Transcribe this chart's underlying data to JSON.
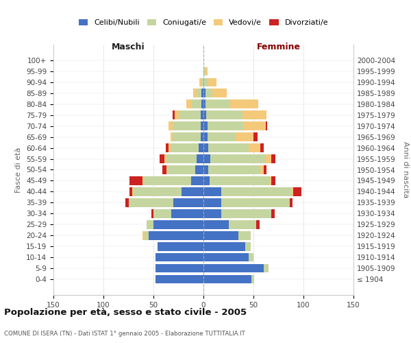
{
  "age_groups": [
    "100+",
    "95-99",
    "90-94",
    "85-89",
    "80-84",
    "75-79",
    "70-74",
    "65-69",
    "60-64",
    "55-59",
    "50-54",
    "45-49",
    "40-44",
    "35-39",
    "30-34",
    "25-29",
    "20-24",
    "15-19",
    "10-14",
    "5-9",
    "0-4"
  ],
  "birth_years": [
    "≤ 1904",
    "1905-1909",
    "1910-1914",
    "1915-1919",
    "1920-1924",
    "1925-1929",
    "1930-1934",
    "1935-1939",
    "1940-1944",
    "1945-1949",
    "1950-1954",
    "1955-1959",
    "1960-1964",
    "1965-1969",
    "1970-1974",
    "1975-1979",
    "1980-1984",
    "1985-1989",
    "1990-1994",
    "1995-1999",
    "2000-2004"
  ],
  "colors": {
    "celibe": "#4472c4",
    "coniugato": "#c5d5a0",
    "vedovo": "#f5c97a",
    "divorziato": "#cc2222"
  },
  "maschi": {
    "celibe": [
      0,
      0,
      0,
      2,
      2,
      3,
      3,
      3,
      5,
      7,
      8,
      12,
      22,
      30,
      32,
      50,
      55,
      46,
      48,
      48,
      48
    ],
    "coniugato": [
      0,
      0,
      2,
      5,
      10,
      22,
      28,
      28,
      28,
      30,
      28,
      48,
      48,
      45,
      18,
      7,
      4,
      0,
      0,
      0,
      0
    ],
    "vedovo": [
      0,
      0,
      2,
      3,
      5,
      4,
      4,
      2,
      2,
      2,
      1,
      1,
      1,
      0,
      0,
      0,
      2,
      0,
      0,
      0,
      0
    ],
    "divorziato": [
      0,
      0,
      0,
      0,
      0,
      2,
      0,
      0,
      3,
      5,
      4,
      13,
      3,
      3,
      2,
      0,
      0,
      0,
      0,
      0,
      0
    ]
  },
  "femmine": {
    "nubile": [
      0,
      0,
      0,
      2,
      2,
      3,
      4,
      4,
      5,
      7,
      5,
      6,
      18,
      18,
      18,
      25,
      35,
      42,
      45,
      60,
      48
    ],
    "coniugata": [
      0,
      2,
      5,
      7,
      25,
      36,
      36,
      28,
      40,
      55,
      52,
      60,
      70,
      68,
      50,
      28,
      12,
      5,
      5,
      5,
      3
    ],
    "vedova": [
      0,
      2,
      8,
      14,
      28,
      24,
      22,
      18,
      12,
      6,
      3,
      2,
      2,
      0,
      0,
      0,
      0,
      0,
      0,
      0,
      0
    ],
    "divorziata": [
      0,
      0,
      0,
      0,
      0,
      0,
      2,
      4,
      3,
      4,
      3,
      4,
      8,
      3,
      3,
      3,
      0,
      0,
      0,
      0,
      0
    ]
  },
  "title": "Popolazione per età, sesso e stato civile - 2005",
  "subtitle": "COMUNE DI ISERA (TN) - Dati ISTAT 1° gennaio 2005 - Elaborazione TUTTITALIA.IT",
  "xlabel_left": "Maschi",
  "xlabel_right": "Femmine",
  "ylabel_left": "Fasce di età",
  "ylabel_right": "Anni di nascita",
  "xlim": 150,
  "legend_labels": [
    "Celibi/Nubili",
    "Coniugati/e",
    "Vedovi/e",
    "Divorziati/e"
  ],
  "background_color": "#ffffff",
  "grid_color": "#cccccc"
}
